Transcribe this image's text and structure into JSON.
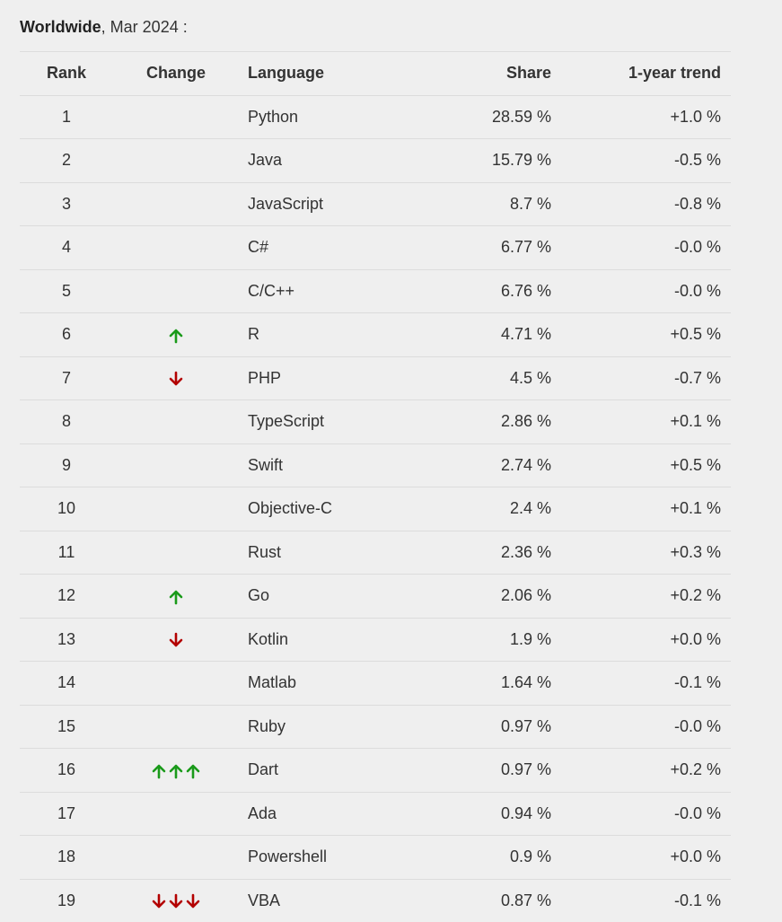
{
  "caption": {
    "region": "Worldwide",
    "date": ", Mar 2024 :"
  },
  "headers": {
    "rank": "Rank",
    "change": "Change",
    "language": "Language",
    "share": "Share",
    "trend": "1-year trend"
  },
  "colors": {
    "up": "#1a9a1a",
    "down": "#b30000"
  },
  "rows": [
    {
      "rank": "1",
      "change": {
        "dir": "",
        "count": 0
      },
      "language": "Python",
      "share": "28.59 %",
      "trend": "+1.0 %"
    },
    {
      "rank": "2",
      "change": {
        "dir": "",
        "count": 0
      },
      "language": "Java",
      "share": "15.79 %",
      "trend": "-0.5 %"
    },
    {
      "rank": "3",
      "change": {
        "dir": "",
        "count": 0
      },
      "language": "JavaScript",
      "share": "8.7 %",
      "trend": "-0.8 %"
    },
    {
      "rank": "4",
      "change": {
        "dir": "",
        "count": 0
      },
      "language": "C#",
      "share": "6.77 %",
      "trend": "-0.0 %"
    },
    {
      "rank": "5",
      "change": {
        "dir": "",
        "count": 0
      },
      "language": "C/C++",
      "share": "6.76 %",
      "trend": "-0.0 %"
    },
    {
      "rank": "6",
      "change": {
        "dir": "up",
        "count": 1
      },
      "language": "R",
      "share": "4.71 %",
      "trend": "+0.5 %"
    },
    {
      "rank": "7",
      "change": {
        "dir": "down",
        "count": 1
      },
      "language": "PHP",
      "share": "4.5 %",
      "trend": "-0.7 %"
    },
    {
      "rank": "8",
      "change": {
        "dir": "",
        "count": 0
      },
      "language": "TypeScript",
      "share": "2.86 %",
      "trend": "+0.1 %"
    },
    {
      "rank": "9",
      "change": {
        "dir": "",
        "count": 0
      },
      "language": "Swift",
      "share": "2.74 %",
      "trend": "+0.5 %"
    },
    {
      "rank": "10",
      "change": {
        "dir": "",
        "count": 0
      },
      "language": "Objective-C",
      "share": "2.4 %",
      "trend": "+0.1 %"
    },
    {
      "rank": "11",
      "change": {
        "dir": "",
        "count": 0
      },
      "language": "Rust",
      "share": "2.36 %",
      "trend": "+0.3 %"
    },
    {
      "rank": "12",
      "change": {
        "dir": "up",
        "count": 1
      },
      "language": "Go",
      "share": "2.06 %",
      "trend": "+0.2 %"
    },
    {
      "rank": "13",
      "change": {
        "dir": "down",
        "count": 1
      },
      "language": "Kotlin",
      "share": "1.9 %",
      "trend": "+0.0 %"
    },
    {
      "rank": "14",
      "change": {
        "dir": "",
        "count": 0
      },
      "language": "Matlab",
      "share": "1.64 %",
      "trend": "-0.1 %"
    },
    {
      "rank": "15",
      "change": {
        "dir": "",
        "count": 0
      },
      "language": "Ruby",
      "share": "0.97 %",
      "trend": "-0.0 %"
    },
    {
      "rank": "16",
      "change": {
        "dir": "up",
        "count": 3
      },
      "language": "Dart",
      "share": "0.97 %",
      "trend": "+0.2 %"
    },
    {
      "rank": "17",
      "change": {
        "dir": "",
        "count": 0
      },
      "language": "Ada",
      "share": "0.94 %",
      "trend": "-0.0 %"
    },
    {
      "rank": "18",
      "change": {
        "dir": "",
        "count": 0
      },
      "language": "Powershell",
      "share": "0.9 %",
      "trend": "+0.0 %"
    },
    {
      "rank": "19",
      "change": {
        "dir": "down",
        "count": 3
      },
      "language": "VBA",
      "share": "0.87 %",
      "trend": "-0.1 %"
    }
  ]
}
